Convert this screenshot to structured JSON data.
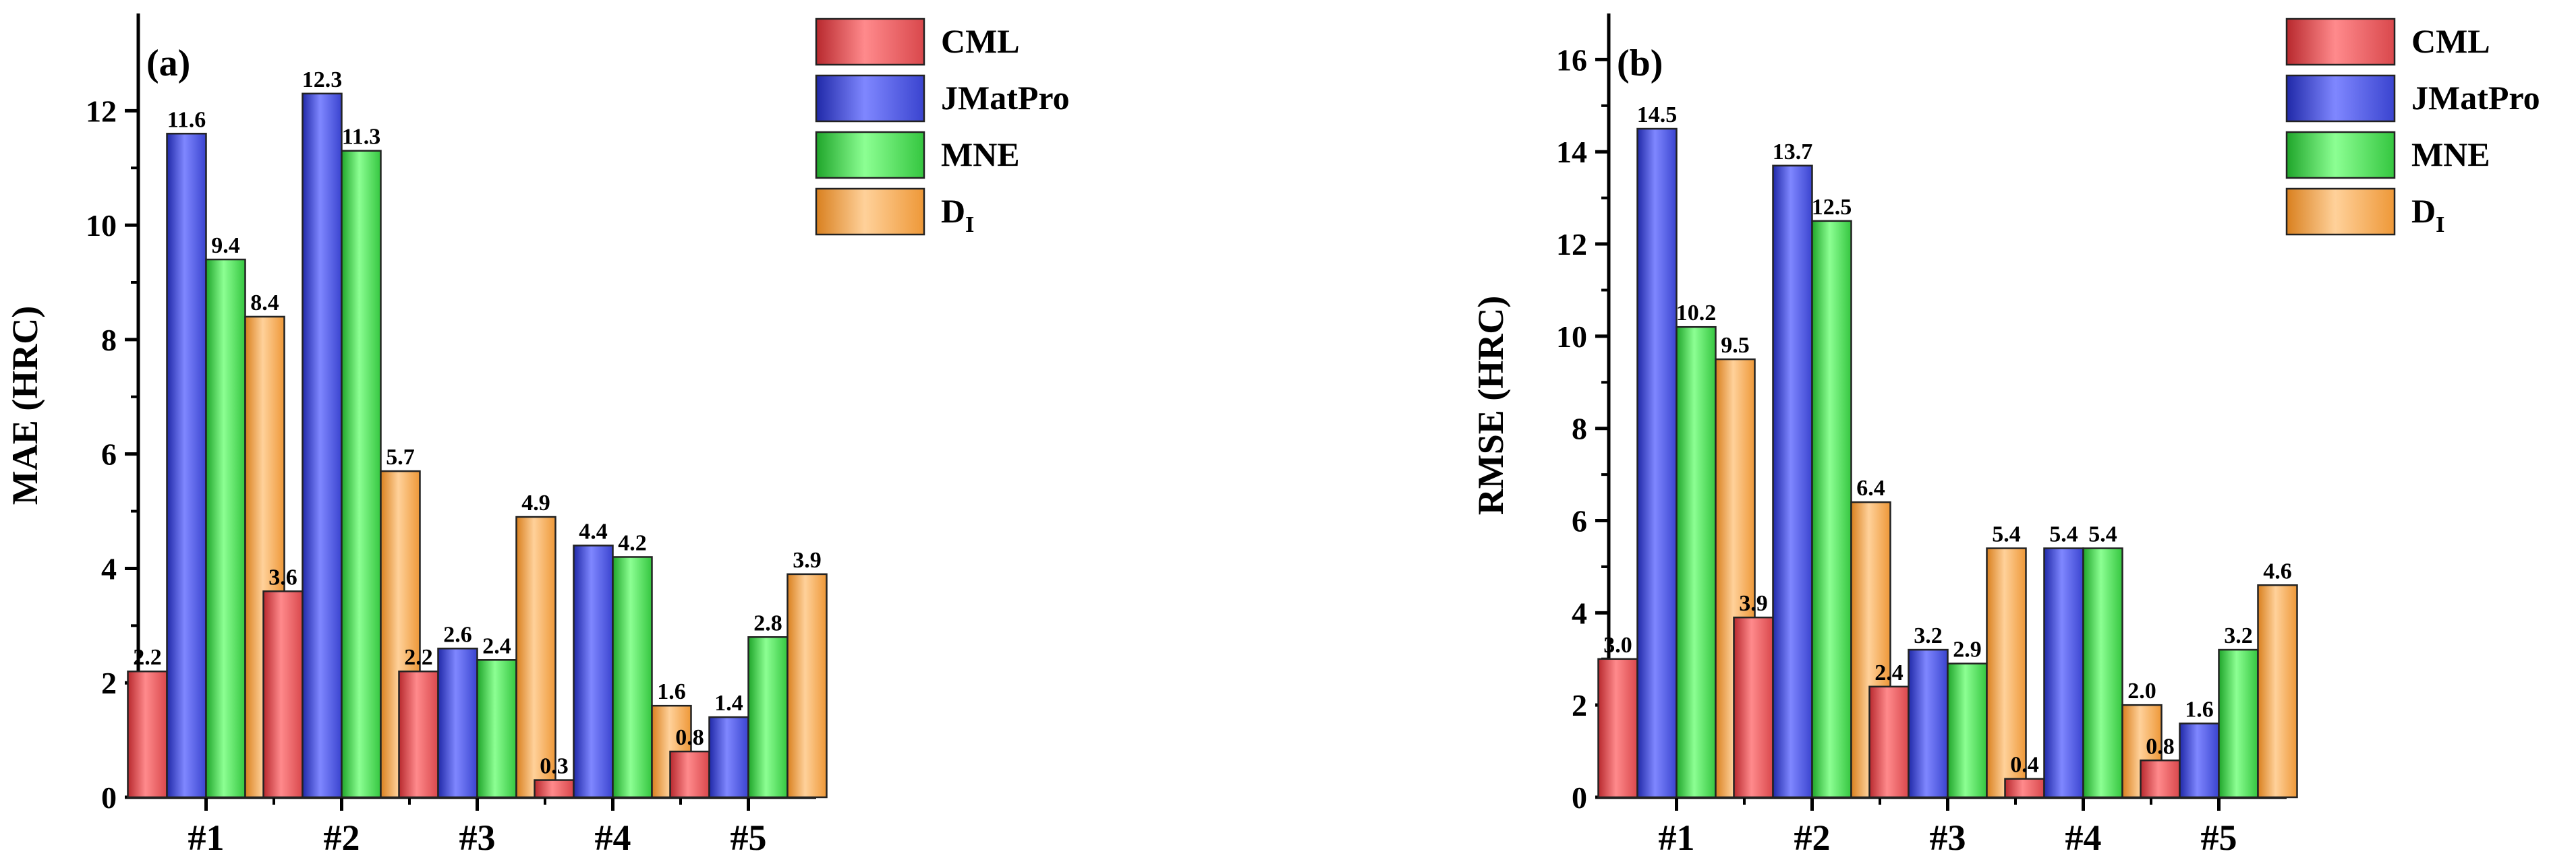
{
  "chart_data": [
    {
      "type": "bar",
      "panel_label": "(a)",
      "title": "",
      "xlabel": "",
      "ylabel": "MAE (HRC)",
      "categories": [
        "#1",
        "#2",
        "#3",
        "#4",
        "#5"
      ],
      "ylim": [
        0,
        13.7
      ],
      "yticks": [
        0,
        2,
        4,
        6,
        8,
        10,
        12
      ],
      "grid": false,
      "legend_position": "top-right",
      "series": [
        {
          "name": "CML",
          "color": "#e8585c",
          "values": [
            2.2,
            3.6,
            2.2,
            0.3,
            0.8
          ],
          "labels": [
            "2.2",
            "3.6",
            "2.2",
            "0.3",
            "0.8"
          ]
        },
        {
          "name": "JMatPro",
          "color": "#4a54e0",
          "values": [
            11.6,
            12.3,
            2.6,
            4.4,
            1.4
          ],
          "labels": [
            "11.6",
            "12.3",
            "2.6",
            "4.4",
            "1.4"
          ]
        },
        {
          "name": "MNE",
          "color": "#3fdc4a",
          "values": [
            9.4,
            11.3,
            2.4,
            4.2,
            2.8
          ],
          "labels": [
            "9.4",
            "11.3",
            "2.4",
            "4.2",
            "2.8"
          ]
        },
        {
          "name": "D",
          "name_subscript": "I",
          "color": "#f7a94e",
          "values": [
            8.4,
            5.7,
            4.9,
            1.6,
            3.9
          ],
          "labels": [
            "8.4",
            "5.7",
            "4.9",
            "1.6",
            "3.9"
          ]
        }
      ]
    },
    {
      "type": "bar",
      "panel_label": "(b)",
      "title": "",
      "xlabel": "",
      "ylabel": "RMSE (HRC)",
      "categories": [
        "#1",
        "#2",
        "#3",
        "#4",
        "#5"
      ],
      "ylim": [
        0,
        17
      ],
      "yticks": [
        0,
        2,
        4,
        6,
        8,
        10,
        12,
        14,
        16
      ],
      "grid": false,
      "legend_position": "top-right",
      "series": [
        {
          "name": "CML",
          "color": "#e8585c",
          "values": [
            3.0,
            3.9,
            2.4,
            0.4,
            0.8
          ],
          "labels": [
            "3.0",
            "3.9",
            "2.4",
            "0.4",
            "0.8"
          ]
        },
        {
          "name": "JMatPro",
          "color": "#4a54e0",
          "values": [
            14.5,
            13.7,
            3.2,
            5.4,
            1.6
          ],
          "labels": [
            "14.5",
            "13.7",
            "3.2",
            "5.4",
            "1.6"
          ]
        },
        {
          "name": "MNE",
          "color": "#3fdc4a",
          "values": [
            10.2,
            12.5,
            2.9,
            5.4,
            3.2
          ],
          "labels": [
            "10.2",
            "12.5",
            "2.9",
            "5.4",
            "3.2"
          ]
        },
        {
          "name": "D",
          "name_subscript": "I",
          "color": "#f7a94e",
          "values": [
            9.5,
            6.4,
            5.4,
            2.0,
            4.6
          ],
          "labels": [
            "9.5",
            "6.4",
            "5.4",
            "2.0",
            "4.6"
          ]
        }
      ]
    }
  ]
}
